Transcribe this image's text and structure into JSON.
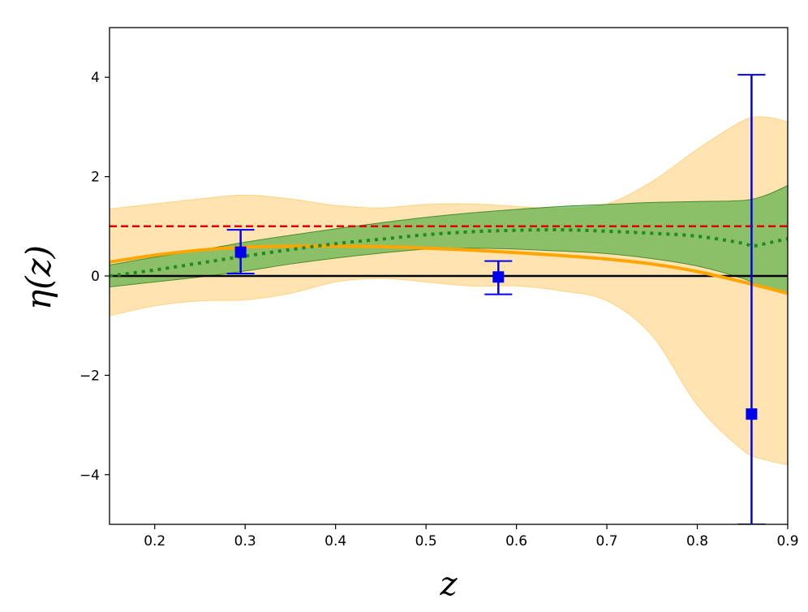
{
  "chart_data": {
    "type": "line",
    "title": "",
    "xlabel": "z",
    "ylabel": "η(z)",
    "xlim": [
      0.15,
      0.9
    ],
    "ylim": [
      -5,
      5
    ],
    "xticks": [
      0.2,
      0.3,
      0.4,
      0.5,
      0.6,
      0.7,
      0.8,
      0.9
    ],
    "xtick_labels": [
      "0.2",
      "0.3",
      "0.4",
      "0.5",
      "0.6",
      "0.7",
      "0.8",
      "0.9"
    ],
    "yticks": [
      -4,
      -2,
      0,
      2,
      4
    ],
    "ytick_labels": [
      "−4",
      "−2",
      "0",
      "2",
      "4"
    ],
    "grid": false,
    "colors": {
      "orange_band": "#ffd27f",
      "orange_line": "#ffa500",
      "green_band": "#2ca02c",
      "green_dotted": "#1f8a1f",
      "red_dashed": "#e00000",
      "zero_line": "#000000",
      "points": "#0000ee"
    },
    "series": [
      {
        "name": "orange band",
        "kind": "band",
        "x": [
          0.15,
          0.2,
          0.25,
          0.3,
          0.35,
          0.4,
          0.45,
          0.5,
          0.55,
          0.6,
          0.65,
          0.7,
          0.75,
          0.8,
          0.85,
          0.875,
          0.9
        ],
        "upper": [
          1.35,
          1.45,
          1.55,
          1.63,
          1.55,
          1.42,
          1.37,
          1.44,
          1.45,
          1.4,
          1.35,
          1.45,
          1.9,
          2.55,
          3.12,
          3.2,
          3.1
        ],
        "lower": [
          -0.8,
          -0.6,
          -0.5,
          -0.48,
          -0.35,
          -0.12,
          -0.05,
          -0.12,
          -0.2,
          -0.2,
          -0.3,
          -0.5,
          -1.2,
          -2.6,
          -3.5,
          -3.7,
          -3.8
        ]
      },
      {
        "name": "green band",
        "kind": "band",
        "x": [
          0.15,
          0.2,
          0.25,
          0.3,
          0.35,
          0.4,
          0.45,
          0.5,
          0.55,
          0.6,
          0.65,
          0.7,
          0.75,
          0.8,
          0.85,
          0.875,
          0.9
        ],
        "upper": [
          0.22,
          0.38,
          0.52,
          0.68,
          0.82,
          0.95,
          1.07,
          1.18,
          1.27,
          1.34,
          1.4,
          1.44,
          1.48,
          1.5,
          1.52,
          1.62,
          1.82
        ],
        "lower": [
          -0.22,
          -0.12,
          -0.02,
          0.1,
          0.24,
          0.36,
          0.46,
          0.54,
          0.56,
          0.54,
          0.5,
          0.45,
          0.35,
          0.2,
          -0.05,
          -0.25,
          -0.35
        ]
      },
      {
        "name": "green dotted mean",
        "kind": "line",
        "x": [
          0.15,
          0.2,
          0.25,
          0.3,
          0.35,
          0.4,
          0.45,
          0.5,
          0.55,
          0.6,
          0.65,
          0.7,
          0.75,
          0.8,
          0.85,
          0.86,
          0.875,
          0.9
        ],
        "y": [
          0.0,
          0.12,
          0.26,
          0.4,
          0.53,
          0.65,
          0.74,
          0.83,
          0.89,
          0.92,
          0.93,
          0.9,
          0.86,
          0.8,
          0.66,
          0.6,
          0.65,
          0.75
        ]
      },
      {
        "name": "orange solid curve",
        "kind": "line",
        "x": [
          0.15,
          0.2,
          0.25,
          0.3,
          0.35,
          0.4,
          0.45,
          0.5,
          0.55,
          0.6,
          0.65,
          0.7,
          0.75,
          0.8,
          0.85,
          0.9
        ],
        "y": [
          0.28,
          0.42,
          0.52,
          0.58,
          0.6,
          0.6,
          0.59,
          0.56,
          0.52,
          0.47,
          0.41,
          0.34,
          0.24,
          0.09,
          -0.12,
          -0.35
        ]
      },
      {
        "name": "red dashed reference",
        "kind": "hline",
        "y": 1.0
      },
      {
        "name": "zero line",
        "kind": "hline",
        "y": 0.0
      },
      {
        "name": "measurements",
        "kind": "errorbar",
        "points": [
          {
            "x": 0.295,
            "y": 0.48,
            "lo": 0.05,
            "hi": 0.93
          },
          {
            "x": 0.58,
            "y": -0.02,
            "lo": -0.37,
            "hi": 0.3
          },
          {
            "x": 0.86,
            "y": -2.78,
            "lo": -5.0,
            "hi": 4.05
          }
        ]
      }
    ]
  }
}
